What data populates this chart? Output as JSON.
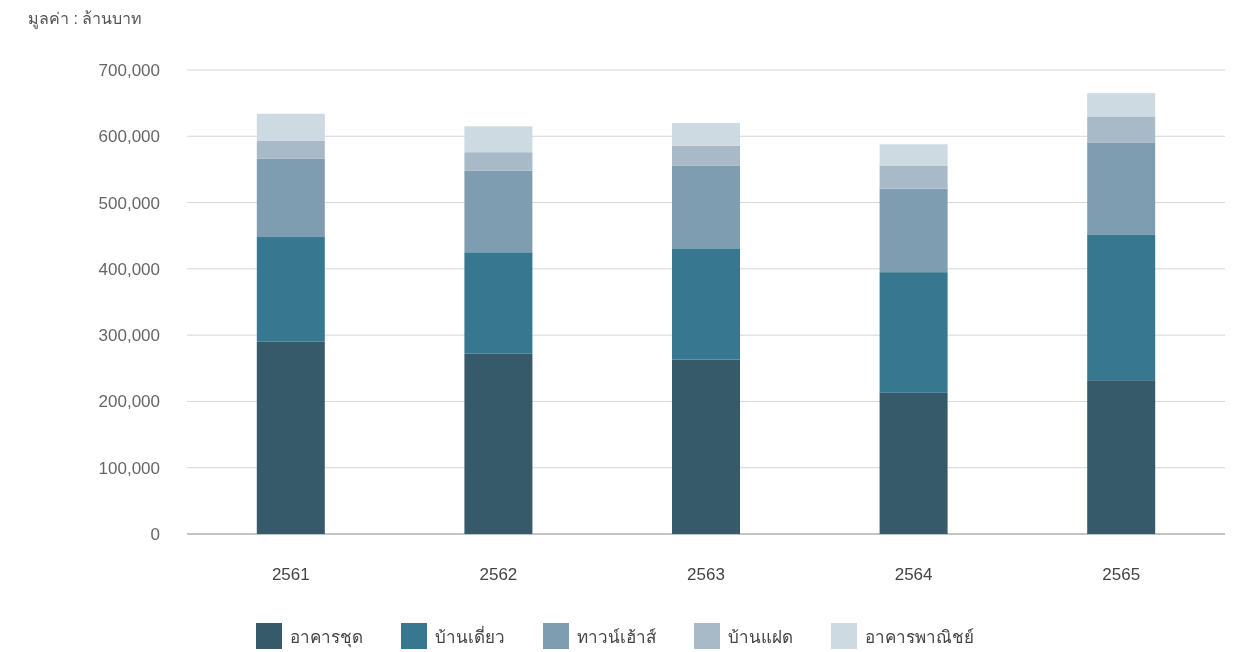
{
  "chart_data": {
    "type": "bar",
    "stacked": true,
    "ylabel": "มูลค่า : ล้านบาท",
    "categories": [
      "2561",
      "2562",
      "2563",
      "2564",
      "2565"
    ],
    "series": [
      {
        "name": "อาคารชุด",
        "color": "#365a6a",
        "values": [
          290000,
          272000,
          263000,
          213000,
          232000
        ]
      },
      {
        "name": "บ้านเดี่ยว",
        "color": "#37778f",
        "values": [
          158000,
          153000,
          168000,
          182000,
          220000
        ]
      },
      {
        "name": "ทาวน์เฮ้าส์",
        "color": "#7f9db0",
        "values": [
          118000,
          123000,
          125000,
          126000,
          138000
        ]
      },
      {
        "name": "บ้านแฝด",
        "color": "#a8b9c8",
        "values": [
          27000,
          28000,
          30000,
          35000,
          40000
        ]
      },
      {
        "name": "อาคารพาณิชย์",
        "color": "#cddae2",
        "values": [
          41000,
          39000,
          34000,
          32000,
          35000
        ]
      }
    ],
    "ylim": [
      0,
      700000
    ],
    "yticks": [
      {
        "value": 0,
        "label": "0"
      },
      {
        "value": 100000,
        "label": "100,000"
      },
      {
        "value": 200000,
        "label": "200,000"
      },
      {
        "value": 300000,
        "label": "300,000"
      },
      {
        "value": 400000,
        "label": "400,000"
      },
      {
        "value": 500000,
        "label": "500,000"
      },
      {
        "value": 600000,
        "label": "600,000"
      },
      {
        "value": 700000,
        "label": "700,000"
      }
    ],
    "grid": "y",
    "legend": "bottom"
  }
}
